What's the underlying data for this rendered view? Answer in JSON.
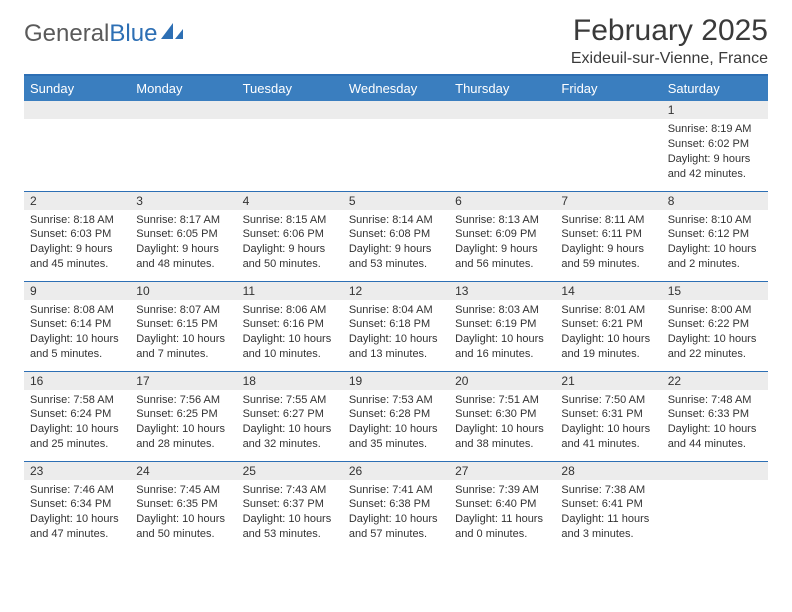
{
  "brand": {
    "part1": "General",
    "part2": "Blue"
  },
  "title": "February 2025",
  "subtitle": "Exideuil-sur-Vienne, France",
  "colors": {
    "header_bg": "#3a7ebf",
    "header_border": "#2d6fb4",
    "cell_border": "#2d6fb4",
    "daynum_bg": "#ececec",
    "text": "#333333",
    "background": "#ffffff"
  },
  "day_headers": [
    "Sunday",
    "Monday",
    "Tuesday",
    "Wednesday",
    "Thursday",
    "Friday",
    "Saturday"
  ],
  "weeks": [
    [
      {
        "n": "",
        "lines": []
      },
      {
        "n": "",
        "lines": []
      },
      {
        "n": "",
        "lines": []
      },
      {
        "n": "",
        "lines": []
      },
      {
        "n": "",
        "lines": []
      },
      {
        "n": "",
        "lines": []
      },
      {
        "n": "1",
        "lines": [
          "Sunrise: 8:19 AM",
          "Sunset: 6:02 PM",
          "Daylight: 9 hours and 42 minutes."
        ]
      }
    ],
    [
      {
        "n": "2",
        "lines": [
          "Sunrise: 8:18 AM",
          "Sunset: 6:03 PM",
          "Daylight: 9 hours and 45 minutes."
        ]
      },
      {
        "n": "3",
        "lines": [
          "Sunrise: 8:17 AM",
          "Sunset: 6:05 PM",
          "Daylight: 9 hours and 48 minutes."
        ]
      },
      {
        "n": "4",
        "lines": [
          "Sunrise: 8:15 AM",
          "Sunset: 6:06 PM",
          "Daylight: 9 hours and 50 minutes."
        ]
      },
      {
        "n": "5",
        "lines": [
          "Sunrise: 8:14 AM",
          "Sunset: 6:08 PM",
          "Daylight: 9 hours and 53 minutes."
        ]
      },
      {
        "n": "6",
        "lines": [
          "Sunrise: 8:13 AM",
          "Sunset: 6:09 PM",
          "Daylight: 9 hours and 56 minutes."
        ]
      },
      {
        "n": "7",
        "lines": [
          "Sunrise: 8:11 AM",
          "Sunset: 6:11 PM",
          "Daylight: 9 hours and 59 minutes."
        ]
      },
      {
        "n": "8",
        "lines": [
          "Sunrise: 8:10 AM",
          "Sunset: 6:12 PM",
          "Daylight: 10 hours and 2 minutes."
        ]
      }
    ],
    [
      {
        "n": "9",
        "lines": [
          "Sunrise: 8:08 AM",
          "Sunset: 6:14 PM",
          "Daylight: 10 hours and 5 minutes."
        ]
      },
      {
        "n": "10",
        "lines": [
          "Sunrise: 8:07 AM",
          "Sunset: 6:15 PM",
          "Daylight: 10 hours and 7 minutes."
        ]
      },
      {
        "n": "11",
        "lines": [
          "Sunrise: 8:06 AM",
          "Sunset: 6:16 PM",
          "Daylight: 10 hours and 10 minutes."
        ]
      },
      {
        "n": "12",
        "lines": [
          "Sunrise: 8:04 AM",
          "Sunset: 6:18 PM",
          "Daylight: 10 hours and 13 minutes."
        ]
      },
      {
        "n": "13",
        "lines": [
          "Sunrise: 8:03 AM",
          "Sunset: 6:19 PM",
          "Daylight: 10 hours and 16 minutes."
        ]
      },
      {
        "n": "14",
        "lines": [
          "Sunrise: 8:01 AM",
          "Sunset: 6:21 PM",
          "Daylight: 10 hours and 19 minutes."
        ]
      },
      {
        "n": "15",
        "lines": [
          "Sunrise: 8:00 AM",
          "Sunset: 6:22 PM",
          "Daylight: 10 hours and 22 minutes."
        ]
      }
    ],
    [
      {
        "n": "16",
        "lines": [
          "Sunrise: 7:58 AM",
          "Sunset: 6:24 PM",
          "Daylight: 10 hours and 25 minutes."
        ]
      },
      {
        "n": "17",
        "lines": [
          "Sunrise: 7:56 AM",
          "Sunset: 6:25 PM",
          "Daylight: 10 hours and 28 minutes."
        ]
      },
      {
        "n": "18",
        "lines": [
          "Sunrise: 7:55 AM",
          "Sunset: 6:27 PM",
          "Daylight: 10 hours and 32 minutes."
        ]
      },
      {
        "n": "19",
        "lines": [
          "Sunrise: 7:53 AM",
          "Sunset: 6:28 PM",
          "Daylight: 10 hours and 35 minutes."
        ]
      },
      {
        "n": "20",
        "lines": [
          "Sunrise: 7:51 AM",
          "Sunset: 6:30 PM",
          "Daylight: 10 hours and 38 minutes."
        ]
      },
      {
        "n": "21",
        "lines": [
          "Sunrise: 7:50 AM",
          "Sunset: 6:31 PM",
          "Daylight: 10 hours and 41 minutes."
        ]
      },
      {
        "n": "22",
        "lines": [
          "Sunrise: 7:48 AM",
          "Sunset: 6:33 PM",
          "Daylight: 10 hours and 44 minutes."
        ]
      }
    ],
    [
      {
        "n": "23",
        "lines": [
          "Sunrise: 7:46 AM",
          "Sunset: 6:34 PM",
          "Daylight: 10 hours and 47 minutes."
        ]
      },
      {
        "n": "24",
        "lines": [
          "Sunrise: 7:45 AM",
          "Sunset: 6:35 PM",
          "Daylight: 10 hours and 50 minutes."
        ]
      },
      {
        "n": "25",
        "lines": [
          "Sunrise: 7:43 AM",
          "Sunset: 6:37 PM",
          "Daylight: 10 hours and 53 minutes."
        ]
      },
      {
        "n": "26",
        "lines": [
          "Sunrise: 7:41 AM",
          "Sunset: 6:38 PM",
          "Daylight: 10 hours and 57 minutes."
        ]
      },
      {
        "n": "27",
        "lines": [
          "Sunrise: 7:39 AM",
          "Sunset: 6:40 PM",
          "Daylight: 11 hours and 0 minutes."
        ]
      },
      {
        "n": "28",
        "lines": [
          "Sunrise: 7:38 AM",
          "Sunset: 6:41 PM",
          "Daylight: 11 hours and 3 minutes."
        ]
      },
      {
        "n": "",
        "lines": []
      }
    ]
  ]
}
